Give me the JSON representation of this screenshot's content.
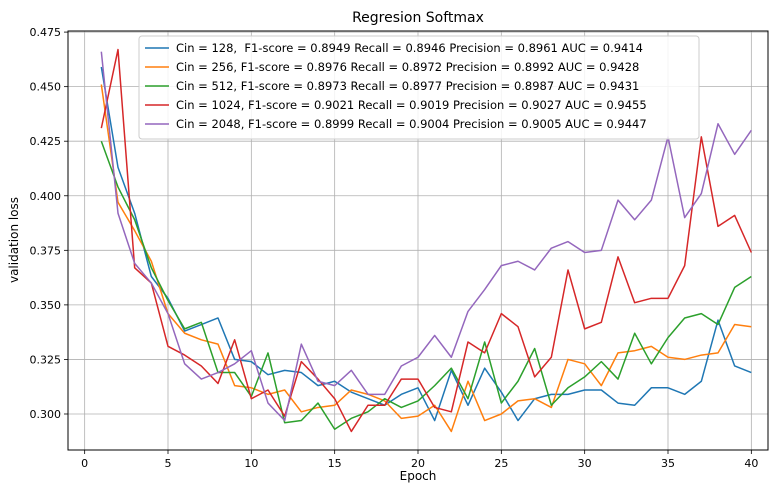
{
  "chart_data": {
    "type": "line",
    "title": "Regresion Softmax",
    "xlabel": "Epoch",
    "ylabel": "validation loss",
    "xlim": [
      -1,
      41
    ],
    "ylim": [
      0.2835,
      0.4755
    ],
    "xticks": [
      0,
      5,
      10,
      15,
      20,
      25,
      30,
      35,
      40
    ],
    "yticks": [
      0.3,
      0.325,
      0.35,
      0.375,
      0.4,
      0.425,
      0.45,
      0.475
    ],
    "ytick_labels": [
      "0.300",
      "0.325",
      "0.350",
      "0.375",
      "0.400",
      "0.425",
      "0.450",
      "0.475"
    ],
    "grid": true,
    "legend_position": "top-center",
    "x": [
      1,
      2,
      3,
      4,
      5,
      6,
      7,
      8,
      9,
      10,
      11,
      12,
      13,
      14,
      15,
      16,
      17,
      18,
      19,
      20,
      21,
      22,
      23,
      24,
      25,
      26,
      27,
      28,
      29,
      30,
      31,
      32,
      33,
      34,
      35,
      36,
      37,
      38,
      39,
      40
    ],
    "series": [
      {
        "name": "Cin = 128,  F1-score = 0.8949 Recall = 0.8946 Precision = 0.8961 AUC = 0.9414",
        "color": "#1f77b4",
        "values": [
          0.459,
          0.413,
          0.392,
          0.363,
          0.353,
          0.338,
          0.341,
          0.344,
          0.325,
          0.324,
          0.318,
          0.32,
          0.319,
          0.313,
          0.315,
          0.31,
          0.307,
          0.304,
          0.309,
          0.312,
          0.297,
          0.32,
          0.304,
          0.321,
          0.31,
          0.297,
          0.307,
          0.309,
          0.309,
          0.311,
          0.311,
          0.305,
          0.304,
          0.312,
          0.312,
          0.309,
          0.315,
          0.343,
          0.322,
          0.319
        ]
      },
      {
        "name": "256, F1-score = 0.8976 Recall = 0.8972 Precision = 0.8992 AUC = 0.9428",
        "prefix": "Cin = ",
        "color": "#ff7f0e",
        "values": [
          0.451,
          0.397,
          0.384,
          0.37,
          0.346,
          0.337,
          0.334,
          0.332,
          0.313,
          0.312,
          0.309,
          0.311,
          0.301,
          0.303,
          0.304,
          0.311,
          0.309,
          0.306,
          0.298,
          0.299,
          0.304,
          0.292,
          0.315,
          0.297,
          0.3,
          0.306,
          0.307,
          0.303,
          0.325,
          0.323,
          0.313,
          0.328,
          0.329,
          0.331,
          0.326,
          0.325,
          0.327,
          0.328,
          0.341,
          0.34
        ]
      },
      {
        "name": "512, F1-score = 0.8973 Recall = 0.8977 Precision = 0.8987 AUC = 0.9431",
        "prefix": "Cin = ",
        "color": "#2ca02c",
        "values": [
          0.425,
          0.404,
          0.389,
          0.367,
          0.352,
          0.339,
          0.342,
          0.319,
          0.319,
          0.308,
          0.328,
          0.296,
          0.297,
          0.305,
          0.293,
          0.298,
          0.301,
          0.307,
          0.303,
          0.306,
          0.313,
          0.321,
          0.307,
          0.333,
          0.305,
          0.315,
          0.33,
          0.304,
          0.312,
          0.317,
          0.324,
          0.316,
          0.337,
          0.323,
          0.335,
          0.344,
          0.346,
          0.341,
          0.358,
          0.363
        ]
      },
      {
        "name": "1024, F1-score = 0.9021 Recall = 0.9019 Precision = 0.9027 AUC = 0.9455",
        "prefix": "Cin = ",
        "color": "#d62728",
        "values": [
          0.431,
          0.467,
          0.367,
          0.36,
          0.331,
          0.327,
          0.322,
          0.314,
          0.334,
          0.307,
          0.311,
          0.299,
          0.324,
          0.316,
          0.307,
          0.292,
          0.304,
          0.304,
          0.316,
          0.316,
          0.303,
          0.301,
          0.333,
          0.328,
          0.346,
          0.34,
          0.317,
          0.326,
          0.366,
          0.339,
          0.342,
          0.372,
          0.351,
          0.353,
          0.353,
          0.368,
          0.427,
          0.386,
          0.391,
          0.374
        ]
      },
      {
        "name": "2048, F1-score = 0.8999 Recall = 0.9004 Precision = 0.9005 AUC = 0.9447",
        "prefix": "Cin = ",
        "color": "#9467bd",
        "values": [
          0.466,
          0.392,
          0.369,
          0.36,
          0.346,
          0.323,
          0.316,
          0.319,
          0.323,
          0.329,
          0.305,
          0.297,
          0.332,
          0.315,
          0.313,
          0.32,
          0.309,
          0.309,
          0.322,
          0.326,
          0.336,
          0.326,
          0.347,
          0.357,
          0.368,
          0.37,
          0.366,
          0.376,
          0.379,
          0.374,
          0.375,
          0.398,
          0.389,
          0.398,
          0.427,
          0.39,
          0.401,
          0.433,
          0.419,
          0.43
        ]
      }
    ]
  }
}
